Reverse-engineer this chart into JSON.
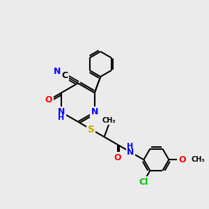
{
  "bg_color": "#ebebeb",
  "bond_color": "#000000",
  "bond_width": 1.5,
  "atom_colors": {
    "C": "#000000",
    "N": "#0000ff",
    "O": "#ff0000",
    "S": "#ccaa00",
    "Cl": "#00bb00",
    "H": "#0000ff"
  },
  "font_size": 9,
  "fig_width": 3.0,
  "fig_height": 3.0,
  "dpi": 100,
  "xlim": [
    0,
    10
  ],
  "ylim": [
    0,
    10
  ]
}
